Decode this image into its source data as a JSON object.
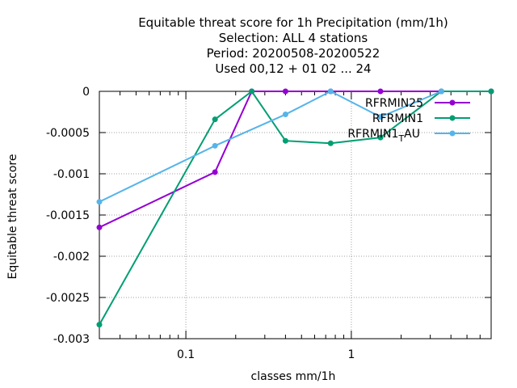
{
  "chart_data": {
    "type": "line",
    "title_lines": [
      "Equitable threat score  for 1h Precipitation (mm/1h)",
      "Selection: ALL      4 stations",
      "Period: 20200508-20200522",
      "Used  00,12  + 01 02 ... 24"
    ],
    "xlabel": "classes mm/1h",
    "ylabel": "Equitable threat score",
    "x_scale": "log",
    "xlim": [
      0.03,
      7.0
    ],
    "ylim": [
      -0.003,
      0
    ],
    "x_ticks": [
      0.1,
      1
    ],
    "x_tick_labels": [
      "0.1",
      "1"
    ],
    "y_ticks": [
      0,
      -0.0005,
      -0.001,
      -0.0015,
      -0.002,
      -0.0025,
      -0.003
    ],
    "y_tick_labels": [
      "0",
      "-0.0005",
      "-0.001",
      "-0.0015",
      "-0.002",
      "-0.0025",
      "-0.003"
    ],
    "grid": true,
    "legend_position": "top-right",
    "series": [
      {
        "name": "RFRMIN25",
        "color": "#9400d3",
        "x": [
          0.03,
          0.15,
          0.25,
          0.4,
          0.75,
          1.5,
          3.5,
          7.0
        ],
        "y": [
          -0.00165,
          -0.00098,
          0,
          0,
          0,
          0,
          0,
          0
        ]
      },
      {
        "name": "RFRMIN1",
        "color": "#009e73",
        "x": [
          0.03,
          0.15,
          0.25,
          0.4,
          0.75,
          1.5,
          3.5,
          7.0
        ],
        "y": [
          -0.00283,
          -0.00034,
          0,
          -0.0006,
          -0.00063,
          -0.00056,
          0,
          0
        ]
      },
      {
        "name_main": "RFRMIN1",
        "name_sub": "T",
        "name_tail": "AU",
        "color": "#56b4e9",
        "x": [
          0.03,
          0.15,
          0.4,
          0.75,
          1.5,
          3.5
        ],
        "y": [
          -0.00134,
          -0.00066,
          -0.00028,
          0,
          -0.00031,
          0
        ]
      }
    ]
  }
}
